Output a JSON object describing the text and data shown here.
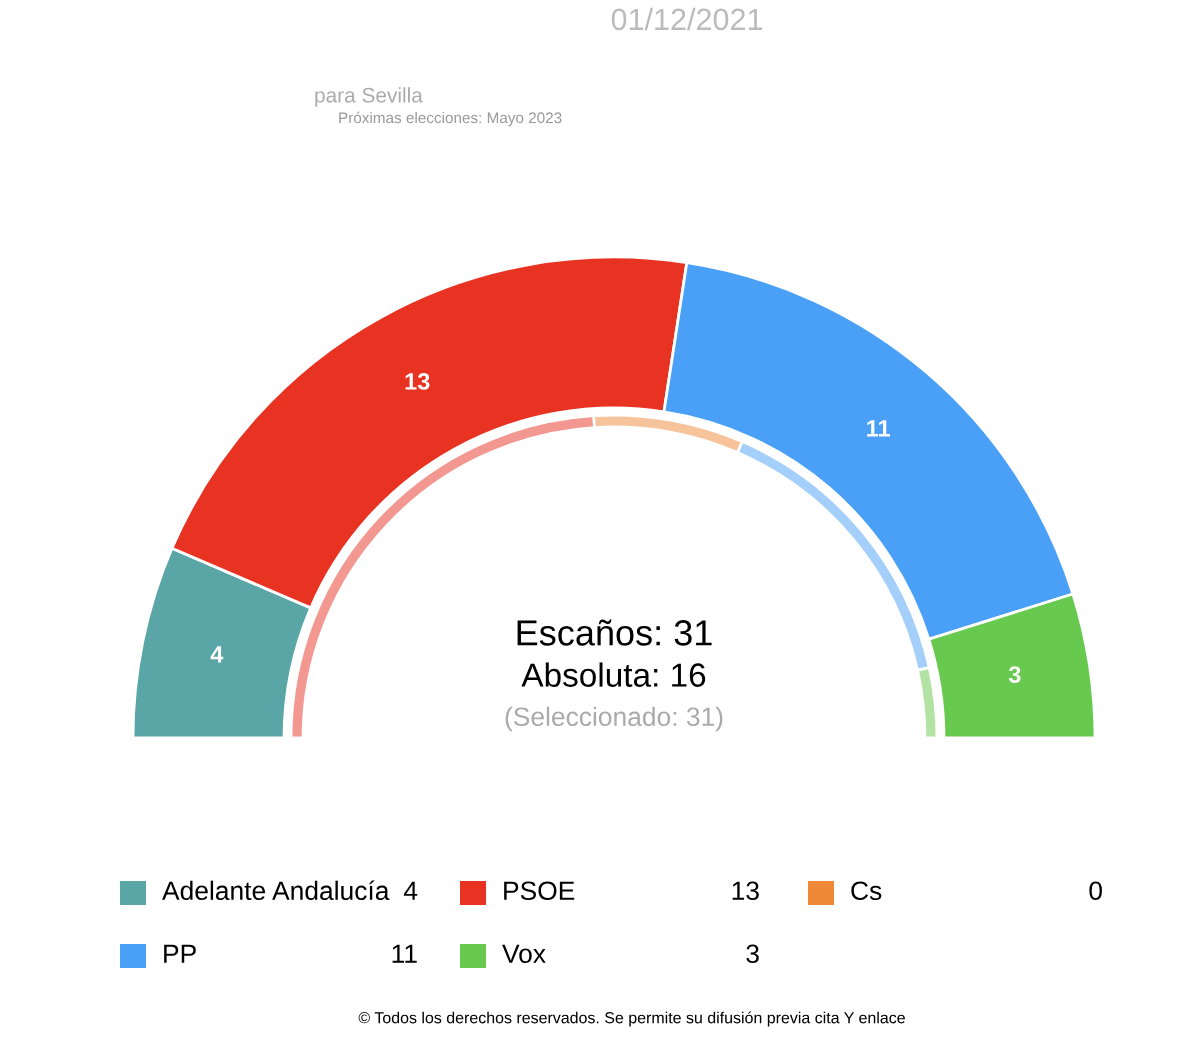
{
  "chart_data": {
    "type": "donut",
    "title": "01/12/2021",
    "subtitle": "para Sevilla",
    "categories": [
      "Adelante Andalucía",
      "PSOE",
      "Cs",
      "PP",
      "Vox"
    ],
    "colors": [
      "#5aa6a6",
      "#e83323",
      "#f0883a",
      "#4aa0f7",
      "#67c94d"
    ],
    "series": [
      {
        "values": [
          4,
          13,
          0,
          11,
          3
        ],
        "value_labels": [
          "4",
          "13",
          "0",
          "11",
          "3"
        ]
      },
      {
        "values": [
          0,
          48,
          15,
          30,
          7
        ]
      }
    ],
    "legend": "bottom",
    "annotations": [
      "Escaños: 31",
      "Absoluta: 16",
      "(Seleccionado: 31)",
      "Próximas elecciones: Mayo 2023",
      "© Todos los derechos reservados. Se permite su difusión previa cita Y enlace"
    ]
  }
}
